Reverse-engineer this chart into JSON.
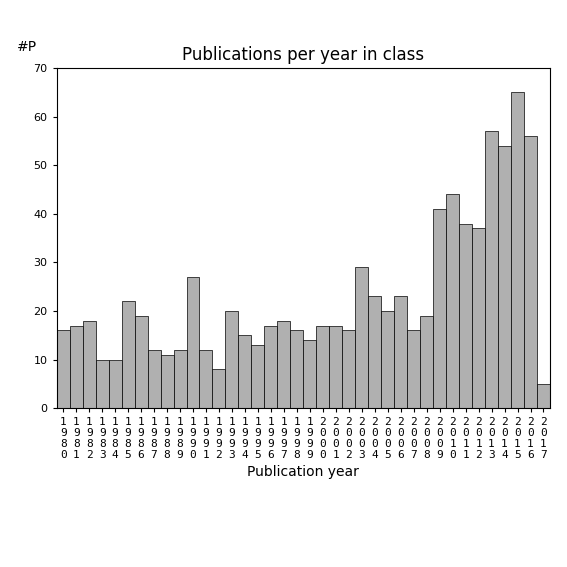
{
  "title": "Publications per year in class",
  "xlabel": "Publication year",
  "ylabel": "#P",
  "years": [
    "1980",
    "1981",
    "1982",
    "1983",
    "1984",
    "1985",
    "1986",
    "1987",
    "1988",
    "1989",
    "1990",
    "1991",
    "1992",
    "1993",
    "1994",
    "1995",
    "1996",
    "1997",
    "1998",
    "1999",
    "2000",
    "2001",
    "2002",
    "2003",
    "2004",
    "2005",
    "2006",
    "2007",
    "2008",
    "2009",
    "2010",
    "2011",
    "2012",
    "2013",
    "2014",
    "2015",
    "2016",
    "2017"
  ],
  "values": [
    16,
    17,
    18,
    10,
    10,
    22,
    19,
    12,
    11,
    12,
    27,
    12,
    8,
    20,
    15,
    13,
    17,
    18,
    16,
    14,
    17,
    17,
    16,
    29,
    23,
    20,
    23,
    16,
    19,
    41,
    44,
    38,
    37,
    57,
    54,
    65,
    56,
    5
  ],
  "bar_color": "#b0b0b0",
  "bar_edge_color": "#000000",
  "bar_edge_width": 0.5,
  "ylim": [
    0,
    70
  ],
  "yticks": [
    0,
    10,
    20,
    30,
    40,
    50,
    60,
    70
  ],
  "title_fontsize": 12,
  "axis_label_fontsize": 10,
  "tick_fontsize": 8,
  "bg_color": "#ffffff"
}
